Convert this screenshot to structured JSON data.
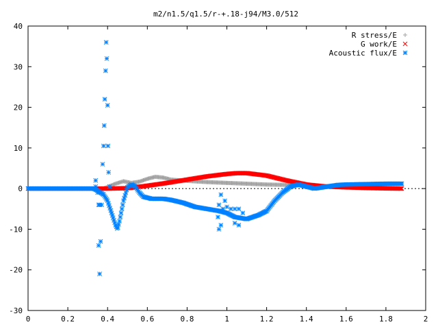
{
  "chart_data": {
    "type": "scatter",
    "title": "m2/n1.5/q1.5/r-+.18-j94/M3.0/512",
    "xlabel": "",
    "ylabel": "",
    "xlim": [
      0,
      2
    ],
    "ylim": [
      -30,
      40
    ],
    "x_ticks": [
      "0",
      "0.2",
      "0.4",
      "0.6",
      "0.8",
      "1",
      "1.2",
      "1.4",
      "1.6",
      "1.8",
      "2"
    ],
    "y_ticks": [
      "40",
      "30",
      "20",
      "10",
      "0",
      "-10",
      "-20",
      "-30"
    ],
    "grid": false,
    "legend_position": "top-right",
    "series": [
      {
        "name": "R stress/E",
        "marker": "plus",
        "color": "#a0a0a0",
        "knots": [
          [
            0,
            0
          ],
          [
            0.33,
            0
          ],
          [
            0.36,
            -0.3
          ],
          [
            0.4,
            0.4
          ],
          [
            0.44,
            1.2
          ],
          [
            0.48,
            1.8
          ],
          [
            0.52,
            1.4
          ],
          [
            0.56,
            1.7
          ],
          [
            0.6,
            2.4
          ],
          [
            0.64,
            2.9
          ],
          [
            0.68,
            2.7
          ],
          [
            0.72,
            2.2
          ],
          [
            0.8,
            1.9
          ],
          [
            0.9,
            1.6
          ],
          [
            1.0,
            1.4
          ],
          [
            1.1,
            1.2
          ],
          [
            1.2,
            1.0
          ],
          [
            1.3,
            0.9
          ],
          [
            1.35,
            1.2
          ],
          [
            1.4,
            0.9
          ],
          [
            1.45,
            0.4
          ],
          [
            1.5,
            0.6
          ],
          [
            1.6,
            0.9
          ],
          [
            1.7,
            1.0
          ],
          [
            1.8,
            1.1
          ],
          [
            1.88,
            1.2
          ]
        ]
      },
      {
        "name": "G work/E",
        "marker": "cross",
        "color": "#ff0000",
        "knots": [
          [
            0,
            0
          ],
          [
            0.4,
            0
          ],
          [
            0.5,
            0.1
          ],
          [
            0.6,
            0.7
          ],
          [
            0.7,
            1.4
          ],
          [
            0.8,
            2.2
          ],
          [
            0.9,
            3.0
          ],
          [
            1.0,
            3.6
          ],
          [
            1.05,
            3.8
          ],
          [
            1.1,
            3.8
          ],
          [
            1.2,
            3.2
          ],
          [
            1.3,
            2.0
          ],
          [
            1.4,
            1.0
          ],
          [
            1.5,
            0.5
          ],
          [
            1.6,
            0.3
          ],
          [
            1.7,
            0.15
          ],
          [
            1.8,
            0.05
          ],
          [
            1.88,
            0
          ]
        ]
      },
      {
        "name": "Acoustic flux/E",
        "marker": "star",
        "color": "#0080ff",
        "knots": [
          [
            0,
            0
          ],
          [
            0.33,
            0
          ],
          [
            0.35,
            -0.5
          ],
          [
            0.38,
            -1.5
          ],
          [
            0.4,
            -3
          ],
          [
            0.42,
            -6
          ],
          [
            0.44,
            -9
          ],
          [
            0.45,
            -10
          ],
          [
            0.46,
            -8
          ],
          [
            0.48,
            -3
          ],
          [
            0.5,
            0.3
          ],
          [
            0.52,
            1
          ],
          [
            0.54,
            0.5
          ],
          [
            0.56,
            -1
          ],
          [
            0.58,
            -2
          ],
          [
            0.62,
            -2.5
          ],
          [
            0.68,
            -2.5
          ],
          [
            0.72,
            -2.8
          ],
          [
            0.78,
            -3.5
          ],
          [
            0.84,
            -4.5
          ],
          [
            0.9,
            -5
          ],
          [
            0.96,
            -5.5
          ],
          [
            1.0,
            -6
          ],
          [
            1.04,
            -7
          ],
          [
            1.1,
            -7.5
          ],
          [
            1.16,
            -6.5
          ],
          [
            1.2,
            -5.5
          ],
          [
            1.24,
            -3
          ],
          [
            1.28,
            -1
          ],
          [
            1.32,
            0.5
          ],
          [
            1.36,
            1
          ],
          [
            1.4,
            0.5
          ],
          [
            1.44,
            0
          ],
          [
            1.48,
            0.3
          ],
          [
            1.56,
            0.9
          ],
          [
            1.6,
            1
          ],
          [
            1.7,
            1.1
          ],
          [
            1.8,
            1.2
          ],
          [
            1.88,
            1.2
          ]
        ],
        "scatter_points": [
          [
            0.34,
            2
          ],
          [
            0.35,
            -1
          ],
          [
            0.355,
            -14
          ],
          [
            0.36,
            -21
          ],
          [
            0.365,
            -13
          ],
          [
            0.37,
            -4
          ],
          [
            0.375,
            6
          ],
          [
            0.38,
            10.5
          ],
          [
            0.383,
            15.5
          ],
          [
            0.386,
            22
          ],
          [
            0.39,
            29
          ],
          [
            0.393,
            36
          ],
          [
            0.396,
            32
          ],
          [
            0.4,
            20.5
          ],
          [
            0.402,
            10.5
          ],
          [
            0.405,
            4
          ],
          [
            0.41,
            0.5
          ],
          [
            0.355,
            -4
          ],
          [
            0.36,
            -4
          ],
          [
            0.34,
            0.5
          ],
          [
            0.97,
            -1.5
          ],
          [
            0.96,
            -4
          ],
          [
            0.955,
            -7
          ],
          [
            0.96,
            -10
          ],
          [
            0.97,
            -9
          ],
          [
            0.98,
            -5
          ],
          [
            0.99,
            -3
          ],
          [
            1.0,
            -4.5
          ],
          [
            1.02,
            -5
          ],
          [
            1.04,
            -5
          ],
          [
            1.06,
            -5
          ],
          [
            1.08,
            -6
          ],
          [
            1.06,
            -9
          ],
          [
            1.04,
            -8.5
          ]
        ]
      }
    ]
  }
}
